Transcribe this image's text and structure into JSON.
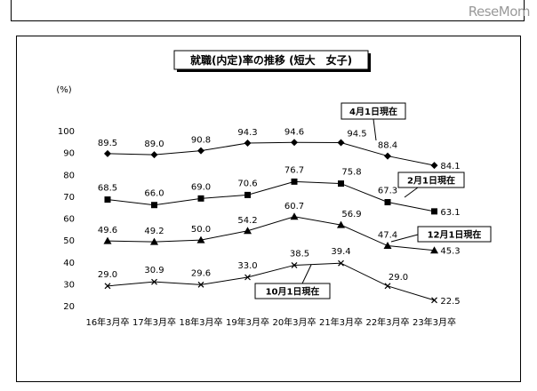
{
  "watermark": "ReseMom",
  "chart_data": {
    "type": "line",
    "title": "就職(内定)率の推移 (短大　女子)",
    "y_unit_label": "(%)",
    "ylim": [
      20,
      100
    ],
    "yticks": [
      20,
      30,
      40,
      50,
      60,
      70,
      80,
      90,
      100
    ],
    "categories": [
      "16年3月卒",
      "17年3月卒",
      "18年3月卒",
      "19年3月卒",
      "20年3月卒",
      "21年3月卒",
      "22年3月卒",
      "23年3月卒"
    ],
    "series": [
      {
        "name": "4月1日現在",
        "marker": "diamond",
        "values": [
          89.5,
          89.0,
          90.8,
          94.3,
          94.6,
          94.5,
          88.4,
          84.1
        ]
      },
      {
        "name": "2月1日現在",
        "marker": "square",
        "values": [
          68.5,
          66.0,
          69.0,
          70.6,
          76.7,
          75.8,
          67.3,
          63.1
        ]
      },
      {
        "name": "12月1日現在",
        "marker": "triangle",
        "values": [
          49.6,
          49.2,
          50.0,
          54.2,
          60.7,
          56.9,
          47.4,
          45.3
        ]
      },
      {
        "name": "10月1日現在",
        "marker": "x",
        "values": [
          29.0,
          30.9,
          29.6,
          33.0,
          38.5,
          39.4,
          29.0,
          22.5
        ]
      }
    ],
    "grid": false,
    "legend": "callouts"
  }
}
